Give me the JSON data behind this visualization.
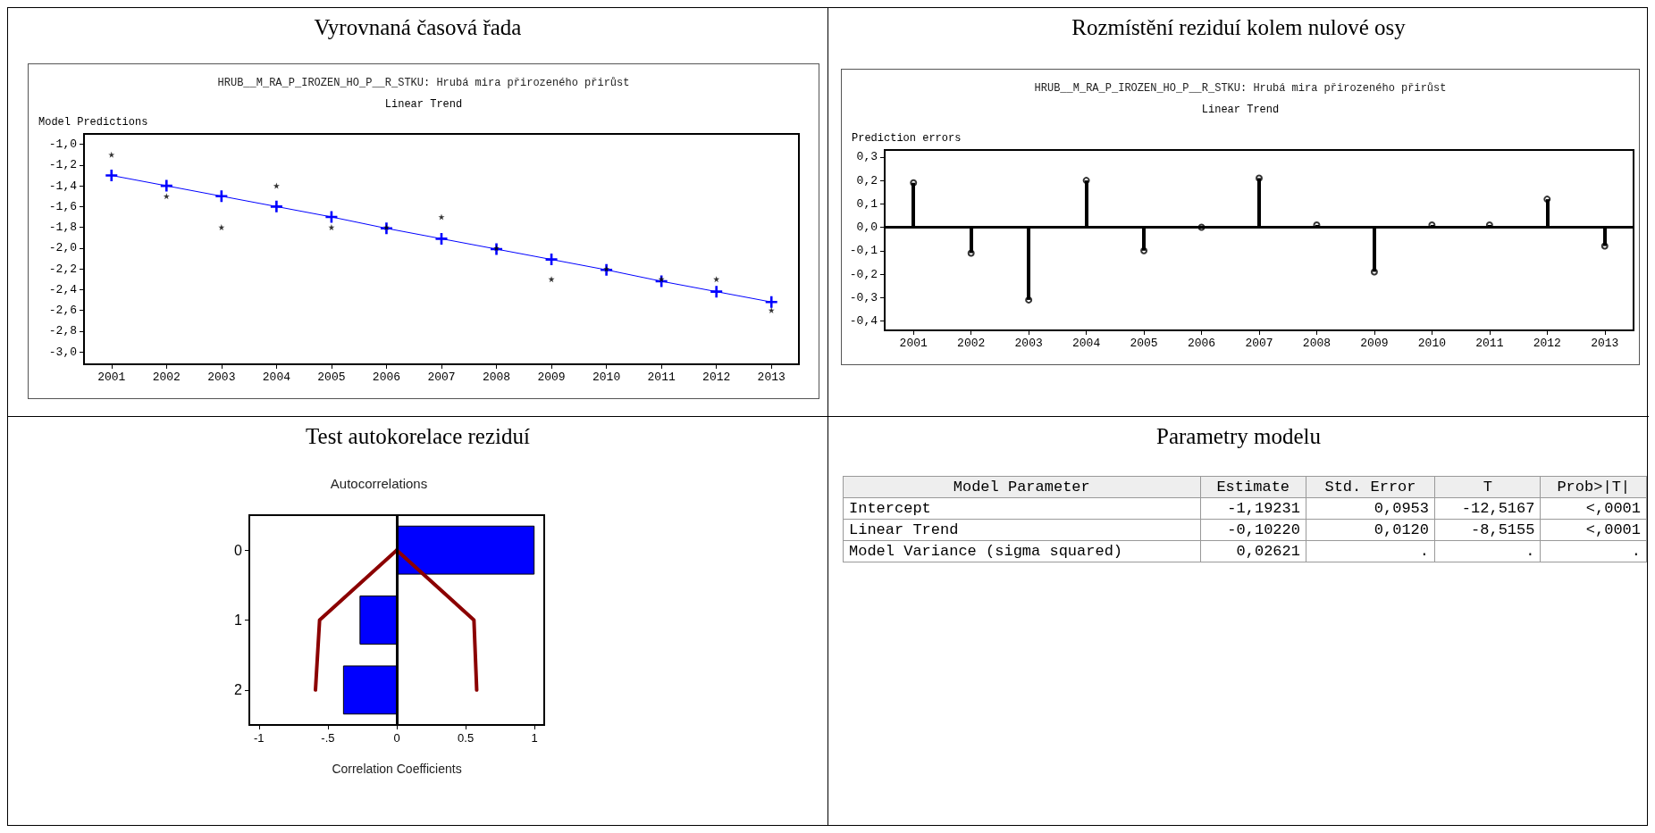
{
  "chart_data": [
    {
      "type": "line",
      "title": "Vyrovnaná časová řada",
      "subtitle": "HRUB__M_RA_P_IROZEN_HO_P__R_STKU: Hrubá mira přirozeného přirůst",
      "annotations": [
        "Linear Trend"
      ],
      "ylabel": "Model Predictions",
      "categories": [
        "2001",
        "2002",
        "2003",
        "2004",
        "2005",
        "2006",
        "2007",
        "2008",
        "2009",
        "2010",
        "2011",
        "2012",
        "2013"
      ],
      "series": [
        {
          "type": "line",
          "marker": "cross",
          "color": "#0000ff",
          "values": [
            -1.3,
            -1.4,
            -1.5,
            -1.6,
            -1.7,
            -1.81,
            -1.91,
            -2.01,
            -2.11,
            -2.21,
            -2.32,
            -2.42,
            -2.52
          ]
        },
        {
          "type": "scatter",
          "marker": "star",
          "color": "#000000",
          "values": [
            -1.1,
            -1.5,
            -1.8,
            -1.4,
            -1.8,
            -1.8,
            -1.7,
            -2.0,
            -2.3,
            -2.2,
            -2.3,
            -2.3,
            -2.6
          ]
        }
      ],
      "ylim": [
        -3.12,
        -0.9
      ],
      "yticks": [
        {
          "value": -1.0,
          "label": "-1,0"
        },
        {
          "value": -1.2,
          "label": "-1,2"
        },
        {
          "value": -1.4,
          "label": "-1,4"
        },
        {
          "value": -1.6,
          "label": "-1,6"
        },
        {
          "value": -1.8,
          "label": "-1,8"
        },
        {
          "value": -2.0,
          "label": "-2,0"
        },
        {
          "value": -2.2,
          "label": "-2,2"
        },
        {
          "value": -2.4,
          "label": "-2,4"
        },
        {
          "value": -2.6,
          "label": "-2,6"
        },
        {
          "value": -2.8,
          "label": "-2,8"
        },
        {
          "value": -3.0,
          "label": "-3,0"
        }
      ]
    },
    {
      "type": "lollipop",
      "title": "Rozmístění reziduí kolem nulové osy",
      "subtitle": "HRUB__M_RA_P_IROZEN_HO_P__R_STKU: Hrubá mira přirozeného přirůst",
      "annotations": [
        "Linear Trend"
      ],
      "ylabel": "Prediction errors",
      "categories": [
        "2001",
        "2002",
        "2003",
        "2004",
        "2005",
        "2006",
        "2007",
        "2008",
        "2009",
        "2010",
        "2011",
        "2012",
        "2013"
      ],
      "marker": "circle",
      "color": "#000000",
      "values": [
        0.19,
        -0.11,
        -0.31,
        0.2,
        -0.1,
        0.0,
        0.21,
        0.01,
        -0.19,
        0.01,
        0.01,
        0.12,
        -0.08
      ],
      "ylim": [
        -0.44,
        0.33
      ],
      "yticks": [
        {
          "value": 0.3,
          "label": "0,3"
        },
        {
          "value": 0.2,
          "label": "0,2"
        },
        {
          "value": 0.1,
          "label": "0,1"
        },
        {
          "value": 0,
          "label": "0,0"
        },
        {
          "value": -0.1,
          "label": "-0,1"
        },
        {
          "value": -0.2,
          "label": "-0,2"
        },
        {
          "value": -0.3,
          "label": "-0,3"
        },
        {
          "value": -0.4,
          "label": "-0,4"
        }
      ],
      "ref_lines": [
        {
          "axis": "y",
          "value": 0,
          "color": "#000000"
        }
      ]
    },
    {
      "type": "bar",
      "orientation": "horizontal",
      "title": "Test autokorelace reziduí",
      "subtitle": "Autocorrelations",
      "xlabel": "Correlation Coefficients",
      "categories": [
        "0",
        "1",
        "2"
      ],
      "series": [
        {
          "type": "bar",
          "color": "#0000ff",
          "values": [
            1.0,
            -0.27,
            -0.39
          ]
        },
        {
          "type": "line",
          "marker": "none",
          "color": "#8b0000",
          "values": [
            0,
            0.56,
            0.58
          ]
        },
        {
          "type": "line",
          "marker": "none",
          "color": "#8b0000",
          "values": [
            0,
            -0.56,
            -0.59
          ]
        }
      ],
      "xlim": [
        -1.07,
        1.07
      ],
      "xticks": [
        -1,
        {
          "value": -0.5,
          "label": "-.5"
        },
        0,
        0.5,
        1
      ],
      "ref_lines": [
        {
          "axis": "x",
          "value": 0,
          "color": "#000000"
        }
      ]
    },
    {
      "type": "other",
      "title": "Parametry modelu",
      "annotations": [
        "Model Parameter",
        "Estimate",
        "Std. Error",
        "T",
        "Prob>|T|",
        "Intercept",
        "-1,19231",
        "0,0953",
        "-12,5167",
        "<,0001",
        "Linear Trend",
        "-0,10220",
        "0,0120",
        "-8,5155",
        "<,0001",
        "Model Variance (sigma squared)",
        "0,02621",
        ".",
        ".",
        "."
      ]
    }
  ]
}
